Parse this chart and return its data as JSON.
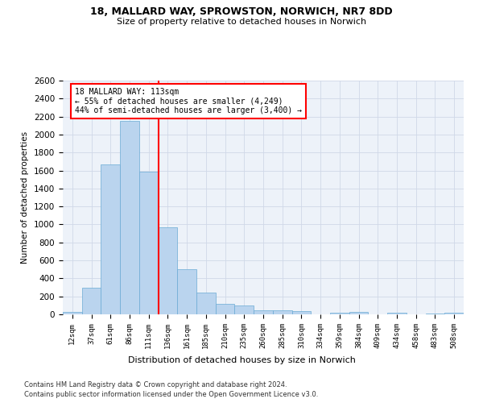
{
  "title1": "18, MALLARD WAY, SPROWSTON, NORWICH, NR7 8DD",
  "title2": "Size of property relative to detached houses in Norwich",
  "xlabel": "Distribution of detached houses by size in Norwich",
  "ylabel": "Number of detached properties",
  "bin_labels": [
    "12sqm",
    "37sqm",
    "61sqm",
    "86sqm",
    "111sqm",
    "136sqm",
    "161sqm",
    "185sqm",
    "210sqm",
    "235sqm",
    "260sqm",
    "285sqm",
    "310sqm",
    "334sqm",
    "359sqm",
    "384sqm",
    "409sqm",
    "434sqm",
    "458sqm",
    "483sqm",
    "508sqm"
  ],
  "bar_values": [
    25,
    295,
    1670,
    2150,
    1590,
    970,
    500,
    245,
    120,
    95,
    45,
    45,
    35,
    0,
    20,
    25,
    0,
    20,
    0,
    5,
    20
  ],
  "bar_color": "#bad4ee",
  "bar_edge_color": "#6aaad4",
  "vline_index": 4.5,
  "annotation_text": "18 MALLARD WAY: 113sqm\n← 55% of detached houses are smaller (4,249)\n44% of semi-detached houses are larger (3,400) →",
  "annotation_box_color": "white",
  "annotation_box_edge_color": "red",
  "vline_color": "red",
  "ylim": [
    0,
    2600
  ],
  "yticks": [
    0,
    200,
    400,
    600,
    800,
    1000,
    1200,
    1400,
    1600,
    1800,
    2000,
    2200,
    2400,
    2600
  ],
  "footnote1": "Contains HM Land Registry data © Crown copyright and database right 2024.",
  "footnote2": "Contains public sector information licensed under the Open Government Licence v3.0.",
  "background_color": "#edf2f9",
  "grid_color": "#d0d8e8"
}
